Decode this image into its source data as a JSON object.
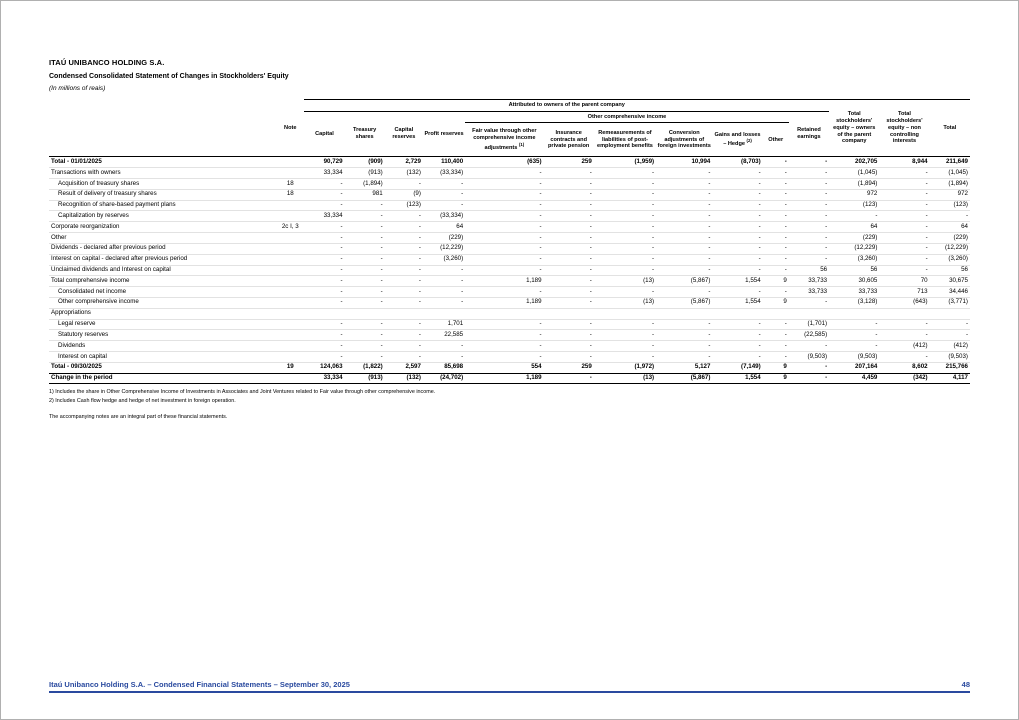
{
  "header": {
    "company": "ITAÚ UNIBANCO HOLDING S.A.",
    "title": "Condensed Consolidated Statement of Changes in Stockholders' Equity",
    "subtitle": "(In millions of reais)"
  },
  "table": {
    "group_headers": {
      "attributed": "Attributed to owners of the parent company",
      "oci": "Other comprehensive income"
    },
    "columns": [
      {
        "label": "Note",
        "sup": ""
      },
      {
        "label": "Capital",
        "sup": ""
      },
      {
        "label": "Treasury shares",
        "sup": ""
      },
      {
        "label": "Capital reserves",
        "sup": ""
      },
      {
        "label": "Profit reserves",
        "sup": ""
      },
      {
        "label": "Fair value through other comprehensive income adjustments",
        "sup": "(1)"
      },
      {
        "label": "Insurance contracts and private pension",
        "sup": ""
      },
      {
        "label": "Remeasurements of liabilities of post-employment benefits",
        "sup": ""
      },
      {
        "label": "Conversion adjustments of foreign investments",
        "sup": ""
      },
      {
        "label": "Gains and losses – Hedge",
        "sup": "(2)"
      },
      {
        "label": "Other",
        "sup": ""
      },
      {
        "label": "Retained earnings",
        "sup": ""
      },
      {
        "label": "Total stockholders' equity – owners of the parent company",
        "sup": ""
      },
      {
        "label": "Total stockholders' equity – non controlling interests",
        "sup": ""
      },
      {
        "label": "Total",
        "sup": ""
      }
    ],
    "rows": [
      {
        "label": "Total - 01/01/2025",
        "note": "",
        "indent": false,
        "type": "opening_total",
        "values": [
          "90,729",
          "(909)",
          "2,729",
          "110,400",
          "(635)",
          "259",
          "(1,959)",
          "10,994",
          "(8,703)",
          "-",
          "-",
          "202,705",
          "8,944",
          "211,649"
        ]
      },
      {
        "label": "Transactions with owners",
        "note": "",
        "indent": false,
        "type": "item",
        "values": [
          "33,334",
          "(913)",
          "(132)",
          "(33,334)",
          "-",
          "-",
          "-",
          "-",
          "-",
          "-",
          "-",
          "(1,045)",
          "-",
          "(1,045)"
        ]
      },
      {
        "label": "Acquisition of treasury shares",
        "note": "18",
        "indent": true,
        "type": "item",
        "values": [
          "-",
          "(1,894)",
          "-",
          "-",
          "-",
          "-",
          "-",
          "-",
          "-",
          "-",
          "-",
          "(1,894)",
          "-",
          "(1,894)"
        ]
      },
      {
        "label": "Result of delivery of treasury shares",
        "note": "18",
        "indent": true,
        "type": "item",
        "values": [
          "-",
          "981",
          "(9)",
          "-",
          "-",
          "-",
          "-",
          "-",
          "-",
          "-",
          "-",
          "972",
          "-",
          "972"
        ]
      },
      {
        "label": "Recognition of share-based payment plans",
        "note": "",
        "indent": true,
        "type": "item",
        "values": [
          "-",
          "-",
          "(123)",
          "-",
          "-",
          "-",
          "-",
          "-",
          "-",
          "-",
          "-",
          "(123)",
          "-",
          "(123)"
        ]
      },
      {
        "label": "Capitalization by reserves",
        "note": "",
        "indent": true,
        "type": "item",
        "values": [
          "33,334",
          "-",
          "-",
          "(33,334)",
          "-",
          "-",
          "-",
          "-",
          "-",
          "-",
          "-",
          "-",
          "-",
          "-"
        ]
      },
      {
        "label": "Corporate reorganization",
        "note": "2c I, 3",
        "indent": false,
        "type": "item",
        "values": [
          "-",
          "-",
          "-",
          "64",
          "-",
          "-",
          "-",
          "-",
          "-",
          "-",
          "-",
          "64",
          "-",
          "64"
        ]
      },
      {
        "label": "Other",
        "note": "",
        "indent": false,
        "type": "item",
        "values": [
          "-",
          "-",
          "-",
          "(229)",
          "-",
          "-",
          "-",
          "-",
          "-",
          "-",
          "-",
          "(229)",
          "-",
          "(229)"
        ]
      },
      {
        "label": "Dividends - declared after previous period",
        "note": "",
        "indent": false,
        "type": "item",
        "values": [
          "-",
          "-",
          "-",
          "(12,229)",
          "-",
          "-",
          "-",
          "-",
          "-",
          "-",
          "-",
          "(12,229)",
          "-",
          "(12,229)"
        ]
      },
      {
        "label": "Interest on capital - declared after previous period",
        "note": "",
        "indent": false,
        "type": "item",
        "values": [
          "-",
          "-",
          "-",
          "(3,260)",
          "-",
          "-",
          "-",
          "-",
          "-",
          "-",
          "-",
          "(3,260)",
          "-",
          "(3,260)"
        ]
      },
      {
        "label": "Unclaimed dividends and Interest on capital",
        "note": "",
        "indent": false,
        "type": "item",
        "values": [
          "-",
          "-",
          "-",
          "-",
          "-",
          "-",
          "-",
          "-",
          "-",
          "-",
          "56",
          "56",
          "-",
          "56"
        ]
      },
      {
        "label": "Total comprehensive income",
        "note": "",
        "indent": false,
        "type": "item",
        "values": [
          "-",
          "-",
          "-",
          "-",
          "1,189",
          "-",
          "(13)",
          "(5,867)",
          "1,554",
          "9",
          "33,733",
          "30,605",
          "70",
          "30,675"
        ]
      },
      {
        "label": "Consolidated net income",
        "note": "",
        "indent": true,
        "type": "item",
        "values": [
          "-",
          "-",
          "-",
          "-",
          "-",
          "-",
          "-",
          "-",
          "-",
          "-",
          "33,733",
          "33,733",
          "713",
          "34,446"
        ]
      },
      {
        "label": "Other comprehensive income",
        "note": "",
        "indent": true,
        "type": "item",
        "values": [
          "-",
          "-",
          "-",
          "-",
          "1,189",
          "-",
          "(13)",
          "(5,867)",
          "1,554",
          "9",
          "-",
          "(3,128)",
          "(643)",
          "(3,771)"
        ]
      },
      {
        "label": "Appropriations",
        "note": "",
        "indent": false,
        "type": "section",
        "values": [
          "",
          "",
          "",
          "",
          "",
          "",
          "",
          "",
          "",
          "",
          "",
          "",
          "",
          ""
        ]
      },
      {
        "label": "Legal reserve",
        "note": "",
        "indent": true,
        "type": "item",
        "values": [
          "-",
          "-",
          "-",
          "1,701",
          "-",
          "-",
          "-",
          "-",
          "-",
          "-",
          "(1,701)",
          "-",
          "-",
          "-"
        ]
      },
      {
        "label": "Statutory reserves",
        "note": "",
        "indent": true,
        "type": "item",
        "values": [
          "-",
          "-",
          "-",
          "22,585",
          "-",
          "-",
          "-",
          "-",
          "-",
          "-",
          "(22,585)",
          "-",
          "-",
          "-"
        ]
      },
      {
        "label": "Dividends",
        "note": "",
        "indent": true,
        "type": "item",
        "values": [
          "-",
          "-",
          "-",
          "-",
          "-",
          "-",
          "-",
          "-",
          "-",
          "-",
          "-",
          "-",
          "(412)",
          "(412)"
        ]
      },
      {
        "label": "Interest on capital",
        "note": "",
        "indent": true,
        "type": "item",
        "values": [
          "-",
          "-",
          "-",
          "-",
          "-",
          "-",
          "-",
          "-",
          "-",
          "-",
          "(9,503)",
          "(9,503)",
          "-",
          "(9,503)"
        ]
      },
      {
        "label": "Total - 09/30/2025",
        "note": "19",
        "indent": false,
        "type": "closing_total",
        "values": [
          "124,063",
          "(1,822)",
          "2,597",
          "85,698",
          "554",
          "259",
          "(1,972)",
          "5,127",
          "(7,149)",
          "9",
          "-",
          "207,164",
          "8,602",
          "215,766"
        ]
      },
      {
        "label": "Change in the period",
        "note": "",
        "indent": false,
        "type": "change",
        "values": [
          "33,334",
          "(913)",
          "(132)",
          "(24,702)",
          "1,189",
          "-",
          "(13)",
          "(5,867)",
          "1,554",
          "9",
          "-",
          "4,459",
          "(342)",
          "4,117"
        ]
      }
    ]
  },
  "footnotes": [
    "1) Includes the share in Other Comprehensive Income of Investments in Associates and Joint Ventures related to Fair value through other comprehensive income.",
    "2) Includes Cash flow hedge and hedge of net investment in foreign operation."
  ],
  "closing_note": "The accompanying notes are an integral part of these financial statements.",
  "footer": {
    "left": "Itaú Unibanco Holding S.A. – Condensed Financial Statements – September 30, 2025",
    "page": "48",
    "accent_color": "#2a4a9f"
  }
}
